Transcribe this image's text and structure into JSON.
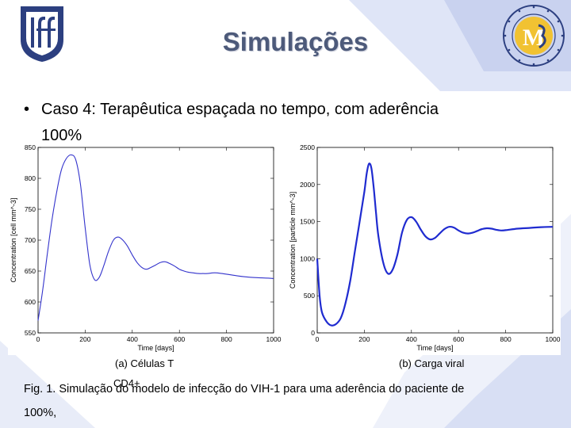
{
  "slide": {
    "title": "Simulações",
    "bullet_text": "Caso 4: Terapêutica espaçada no tempo, com aderência",
    "bullet_cont": "100%",
    "subcaption_a": "(a) Células T",
    "subcaption_a_cont": "CD4+",
    "subcaption_b": "(b) Carga viral",
    "caption_line1": "Fig. 1. Simulação do modelo de infecção do VIH-1 para uma aderência do paciente de",
    "caption_line2": "100%,",
    "accent_color": "#4d5a7a",
    "band_color": "#c9d2ef"
  },
  "chart_data": [
    {
      "type": "line",
      "xlabel": "Time [days]",
      "ylabel": "Concentration [cell mm^-3]",
      "xlim": [
        0,
        1000
      ],
      "ylim": [
        550,
        850
      ],
      "xticks": [
        0,
        200,
        400,
        600,
        800,
        1000
      ],
      "yticks": [
        550,
        600,
        650,
        700,
        750,
        800,
        850
      ],
      "series": [
        {
          "color": "#3333cc",
          "x": [
            0,
            20,
            40,
            60,
            80,
            100,
            120,
            140,
            160,
            180,
            200,
            220,
            240,
            260,
            280,
            300,
            320,
            340,
            360,
            380,
            400,
            420,
            440,
            460,
            480,
            500,
            520,
            540,
            560,
            580,
            600,
            620,
            640,
            660,
            680,
            700,
            720,
            740,
            760,
            780,
            800,
            850,
            900,
            950,
            1000
          ],
          "y": [
            570,
            620,
            680,
            735,
            780,
            815,
            832,
            838,
            830,
            790,
            720,
            660,
            636,
            640,
            660,
            683,
            700,
            705,
            700,
            690,
            676,
            664,
            656,
            653,
            656,
            660,
            664,
            665,
            662,
            658,
            653,
            650,
            648,
            647,
            646,
            646,
            646,
            647,
            647,
            646,
            645,
            642,
            640,
            639,
            638
          ]
        }
      ]
    },
    {
      "type": "line",
      "xlabel": "Time [days]",
      "ylabel": "Concentration [particle mm^-3]",
      "xlim": [
        0,
        1000
      ],
      "ylim": [
        0,
        2500
      ],
      "xticks": [
        0,
        200,
        400,
        600,
        800,
        1000
      ],
      "yticks": [
        0,
        500,
        1000,
        1500,
        2000,
        2500
      ],
      "series": [
        {
          "color": "#1f2bd0",
          "x": [
            0,
            10,
            20,
            40,
            60,
            80,
            100,
            120,
            140,
            160,
            180,
            200,
            210,
            220,
            230,
            240,
            250,
            260,
            280,
            300,
            320,
            340,
            360,
            380,
            400,
            420,
            440,
            460,
            480,
            500,
            520,
            540,
            560,
            580,
            600,
            620,
            640,
            660,
            680,
            700,
            720,
            740,
            760,
            780,
            800,
            850,
            900,
            950,
            1000
          ],
          "y": [
            1000,
            500,
            280,
            150,
            100,
            120,
            200,
            400,
            700,
            1100,
            1500,
            1900,
            2150,
            2280,
            2220,
            1950,
            1600,
            1300,
            950,
            800,
            850,
            1050,
            1350,
            1520,
            1560,
            1500,
            1390,
            1300,
            1260,
            1280,
            1340,
            1400,
            1430,
            1420,
            1380,
            1350,
            1340,
            1350,
            1375,
            1400,
            1410,
            1405,
            1390,
            1380,
            1385,
            1405,
            1415,
            1425,
            1430
          ]
        }
      ]
    }
  ]
}
